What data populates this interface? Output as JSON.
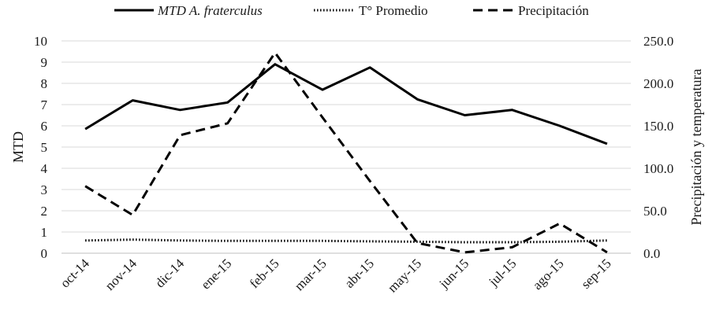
{
  "chart_data": {
    "type": "line",
    "categories": [
      "oct-14",
      "nov-14",
      "dic-14",
      "ene-15",
      "feb-15",
      "mar-15",
      "abr-15",
      "may-15",
      "jun-15",
      "jul-15",
      "ago-15",
      "sep-15"
    ],
    "series": [
      {
        "name": "MTD A. fraterculus",
        "axis": "left",
        "style": "solid",
        "values": [
          5.85,
          7.2,
          6.75,
          7.1,
          8.9,
          7.7,
          8.75,
          7.25,
          6.5,
          6.75,
          6.0,
          5.15
        ]
      },
      {
        "name": "T° Promedio",
        "axis": "right",
        "style": "dotted",
        "values": [
          15.0,
          16.0,
          15.0,
          14.5,
          14.5,
          14.5,
          14.0,
          13.5,
          13.0,
          13.0,
          13.5,
          15.0
        ]
      },
      {
        "name": "Precipitación",
        "axis": "right",
        "style": "dashed",
        "values": [
          79.0,
          45.0,
          139.0,
          153.0,
          236.0,
          160.0,
          85.0,
          12.0,
          1.0,
          7.0,
          35.0,
          1.0
        ]
      }
    ],
    "ylabel": "MTD",
    "y2label": "Precipitación y temperatura",
    "ylim": [
      0,
      10
    ],
    "y2lim": [
      0,
      250
    ],
    "yticks": [
      "0",
      "1",
      "2",
      "3",
      "4",
      "5",
      "6",
      "7",
      "8",
      "9",
      "10"
    ],
    "y2ticks": [
      "0.0",
      "50.0",
      "100.0",
      "150.0",
      "200.0",
      "250.0"
    ],
    "grid": "horizontal",
    "legend": "top"
  },
  "legend": {
    "mtd_prefix": "MTD ",
    "mtd_species": "A. fraterculus",
    "temp": "T° Promedio",
    "precip": "Precipitación"
  }
}
